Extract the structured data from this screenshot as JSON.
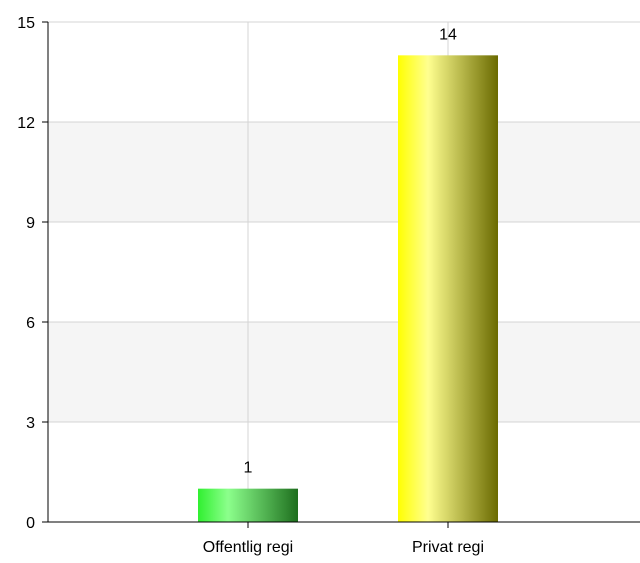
{
  "chart_data": {
    "type": "bar",
    "categories": [
      "Offentlig regi",
      "Privat regi"
    ],
    "values": [
      1,
      14
    ],
    "data_labels": [
      "1",
      "14"
    ],
    "title": "",
    "xlabel": "",
    "ylabel": "",
    "ylim": [
      0,
      15
    ],
    "yticks": [
      0,
      3,
      6,
      9,
      12,
      15
    ],
    "ytick_labels": [
      "0",
      "3",
      "6",
      "9",
      "12",
      "15"
    ],
    "grid": true,
    "bar_colors": [
      {
        "dark": "#1e6f1e",
        "mid": "#8cff8c",
        "light": "#30f030"
      },
      {
        "dark": "#6a6a00",
        "mid": "#ffff90",
        "light": "#ffff00"
      }
    ]
  }
}
